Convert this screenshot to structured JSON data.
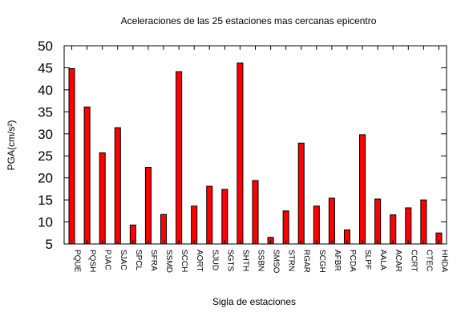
{
  "chart_data": {
    "type": "bar",
    "title": "Aceleraciones de las 25 estaciones mas cercanas epicentro",
    "xlabel": "Sigla de estaciones",
    "ylabel": "PGA(cm/s²)",
    "ylim": [
      5,
      50
    ],
    "yticks": [
      "5",
      "10",
      "15",
      "20",
      "25",
      "30",
      "35",
      "40",
      "45",
      "50"
    ],
    "categories": [
      "PQUE",
      "PQSH",
      "PJAC",
      "SJAC",
      "SPCL",
      "SFRA",
      "SSMD",
      "SCCH",
      "AORT",
      "SJUD",
      "SGTS",
      "SHTH",
      "SSBN",
      "SMSO",
      "STRN",
      "RGAR",
      "SCGH",
      "AFBR",
      "PCDA",
      "SLPF",
      "AALA",
      "ACAR",
      "CCRT",
      "CTEC",
      "HHDA"
    ],
    "values": [
      44.8,
      36.1,
      25.7,
      31.4,
      9.3,
      22.4,
      11.7,
      44.1,
      13.6,
      18.1,
      17.4,
      46.1,
      19.4,
      6.5,
      12.5,
      27.9,
      13.6,
      15.4,
      8.2,
      29.8,
      15.2,
      11.6,
      13.2,
      15.0,
      7.5
    ],
    "bar_color": "#ff0000",
    "grid": false
  }
}
